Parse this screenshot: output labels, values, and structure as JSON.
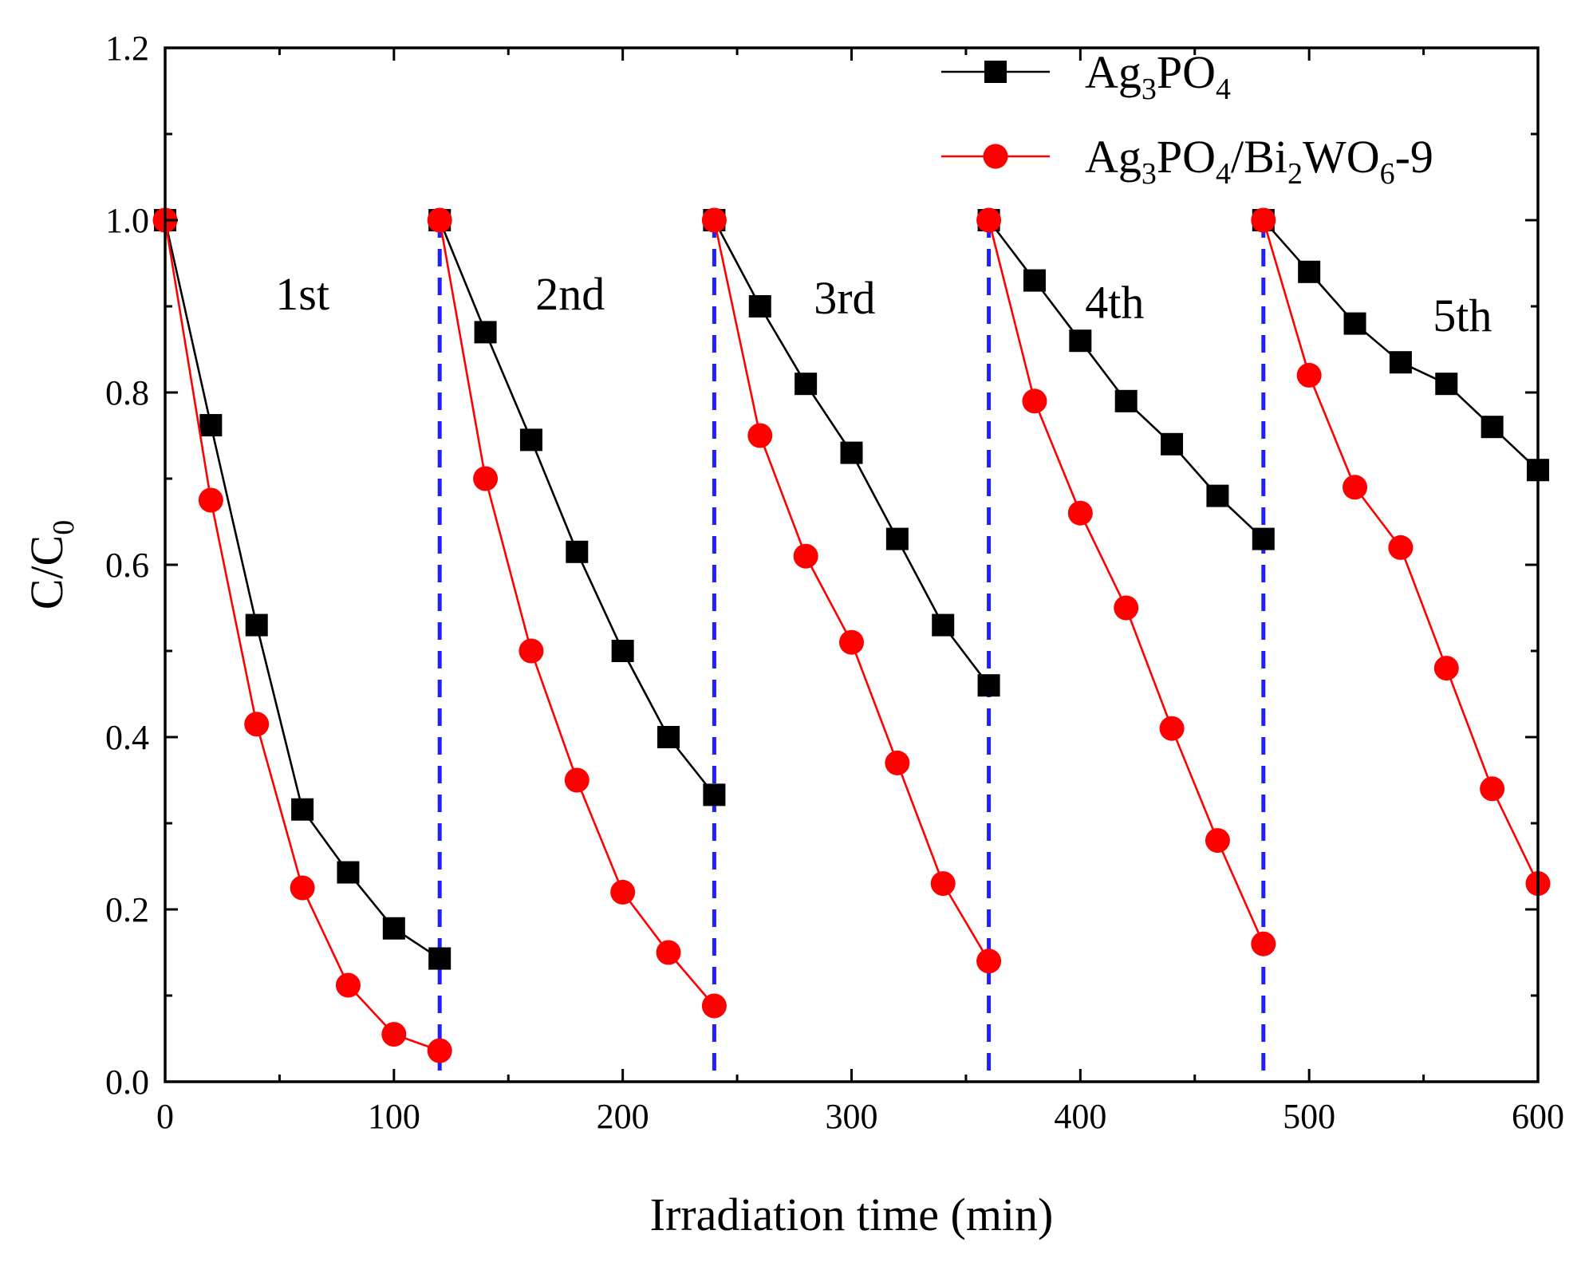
{
  "chart_data": {
    "type": "line",
    "title": "",
    "xlabel": "Irradiation time (min)",
    "ylabel": {
      "main": "C/C",
      "sub": "0"
    },
    "xlim": [
      0,
      600
    ],
    "ylim": [
      0.0,
      1.2
    ],
    "xticks": [
      0,
      100,
      200,
      300,
      400,
      500,
      600
    ],
    "xtick_labels": [
      "0",
      "100",
      "200",
      "300",
      "400",
      "500",
      "600"
    ],
    "yticks": [
      0.0,
      0.2,
      0.4,
      0.6,
      0.8,
      1.0,
      1.2
    ],
    "ytick_labels": [
      "0.0",
      "0.2",
      "0.4",
      "0.6",
      "0.8",
      "1.0",
      "1.2"
    ],
    "grid": false,
    "legend_position": "top-right",
    "cycle_separators": [
      120,
      240,
      360,
      480
    ],
    "separator_color": "#1f1fff",
    "cycle_labels": [
      {
        "text": "1st",
        "x": 60,
        "y": 0.915
      },
      {
        "text": "2nd",
        "x": 177,
        "y": 0.915
      },
      {
        "text": "3rd",
        "x": 297,
        "y": 0.91
      },
      {
        "text": "4th",
        "x": 415,
        "y": 0.905
      },
      {
        "text": "5th",
        "x": 567,
        "y": 0.89
      }
    ],
    "series": [
      {
        "name": "Ag3PO4",
        "legend": [
          {
            "text": "Ag",
            "sub": false
          },
          {
            "text": "3",
            "sub": true
          },
          {
            "text": "PO",
            "sub": false
          },
          {
            "text": "4",
            "sub": true
          }
        ],
        "color": "#000000",
        "marker": "square",
        "segments": [
          [
            [
              0,
              1.0
            ],
            [
              20,
              0.762
            ],
            [
              40,
              0.53
            ],
            [
              60,
              0.316
            ],
            [
              80,
              0.243
            ],
            [
              100,
              0.178
            ],
            [
              120,
              0.143
            ]
          ],
          [
            [
              120,
              1.0
            ],
            [
              140,
              0.87
            ],
            [
              160,
              0.745
            ],
            [
              180,
              0.615
            ],
            [
              200,
              0.5
            ],
            [
              220,
              0.4
            ],
            [
              240,
              0.333
            ]
          ],
          [
            [
              240,
              1.0
            ],
            [
              260,
              0.9
            ],
            [
              280,
              0.81
            ],
            [
              300,
              0.73
            ],
            [
              320,
              0.63
            ],
            [
              340,
              0.53
            ],
            [
              360,
              0.46
            ]
          ],
          [
            [
              360,
              1.0
            ],
            [
              380,
              0.93
            ],
            [
              400,
              0.86
            ],
            [
              420,
              0.79
            ],
            [
              440,
              0.74
            ],
            [
              460,
              0.68
            ],
            [
              480,
              0.63
            ]
          ],
          [
            [
              480,
              1.0
            ],
            [
              500,
              0.94
            ],
            [
              520,
              0.88
            ],
            [
              540,
              0.835
            ],
            [
              560,
              0.81
            ],
            [
              580,
              0.76
            ],
            [
              600,
              0.71
            ]
          ]
        ]
      },
      {
        "name": "Ag3PO4/Bi2WO6-9",
        "legend": [
          {
            "text": "Ag",
            "sub": false
          },
          {
            "text": "3",
            "sub": true
          },
          {
            "text": "PO",
            "sub": false
          },
          {
            "text": "4",
            "sub": true
          },
          {
            "text": "/Bi",
            "sub": false
          },
          {
            "text": "2",
            "sub": true
          },
          {
            "text": "WO",
            "sub": false
          },
          {
            "text": "6",
            "sub": true
          },
          {
            "text": "-9",
            "sub": false
          }
        ],
        "color": "#ff0000",
        "marker": "circle",
        "segments": [
          [
            [
              0,
              1.0
            ],
            [
              20,
              0.675
            ],
            [
              40,
              0.415
            ],
            [
              60,
              0.225
            ],
            [
              80,
              0.112
            ],
            [
              100,
              0.055
            ],
            [
              120,
              0.036
            ]
          ],
          [
            [
              120,
              1.0
            ],
            [
              140,
              0.7
            ],
            [
              160,
              0.5
            ],
            [
              180,
              0.35
            ],
            [
              200,
              0.22
            ],
            [
              220,
              0.15
            ],
            [
              240,
              0.088
            ]
          ],
          [
            [
              240,
              1.0
            ],
            [
              260,
              0.75
            ],
            [
              280,
              0.61
            ],
            [
              300,
              0.51
            ],
            [
              320,
              0.37
            ],
            [
              340,
              0.23
            ],
            [
              360,
              0.14
            ]
          ],
          [
            [
              360,
              1.0
            ],
            [
              380,
              0.79
            ],
            [
              400,
              0.66
            ],
            [
              420,
              0.55
            ],
            [
              440,
              0.41
            ],
            [
              460,
              0.28
            ],
            [
              480,
              0.16
            ]
          ],
          [
            [
              480,
              1.0
            ],
            [
              500,
              0.82
            ],
            [
              520,
              0.69
            ],
            [
              540,
              0.62
            ],
            [
              560,
              0.48
            ],
            [
              580,
              0.34
            ],
            [
              600,
              0.23
            ]
          ]
        ]
      }
    ]
  }
}
